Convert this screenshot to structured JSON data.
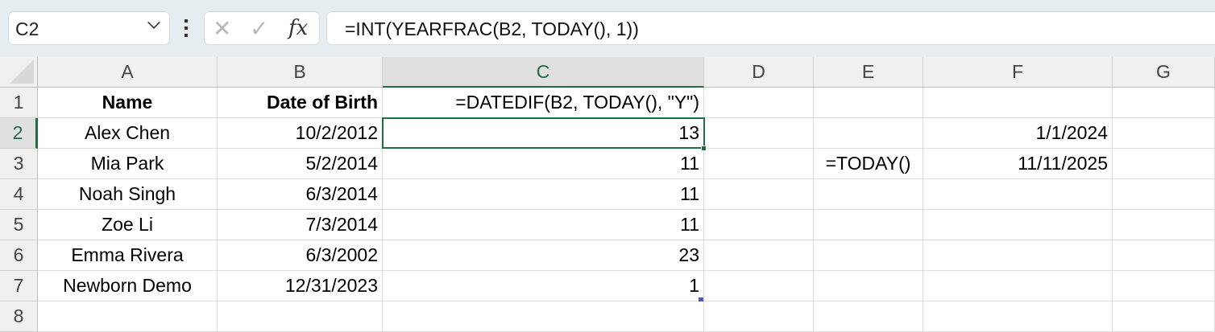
{
  "name_box": "C2",
  "formula_bar": "=INT(YEARFRAC(B2, TODAY(), 1))",
  "icons": {
    "cancel": "x-icon",
    "enter": "check-icon",
    "function": "fx-icon"
  },
  "accent": "#1e6e42",
  "columns": [
    "A",
    "B",
    "C",
    "D",
    "E",
    "F",
    "G"
  ],
  "rows": [
    "1",
    "2",
    "3",
    "4",
    "5",
    "6",
    "7",
    "8"
  ],
  "cells": {
    "A1": "Name",
    "B1": "Date of Birth",
    "C1": "=DATEDIF(B2, TODAY(), \"Y\")",
    "A2": "Alex Chen",
    "B2": "10/2/2012",
    "C2": "13",
    "F2": "1/1/2024",
    "A3": "Mia Park",
    "B3": "5/2/2014",
    "C3": "11",
    "E3": "=TODAY()",
    "F3": "11/11/2025",
    "A4": "Noah Singh",
    "B4": "6/3/2014",
    "C4": "11",
    "A5": "Zoe Li",
    "B5": "7/3/2014",
    "C5": "11",
    "A6": "Emma Rivera",
    "B6": "6/3/2002",
    "C6": "23",
    "A7": "Newborn Demo",
    "B7": "12/31/2023",
    "C7": "1"
  }
}
